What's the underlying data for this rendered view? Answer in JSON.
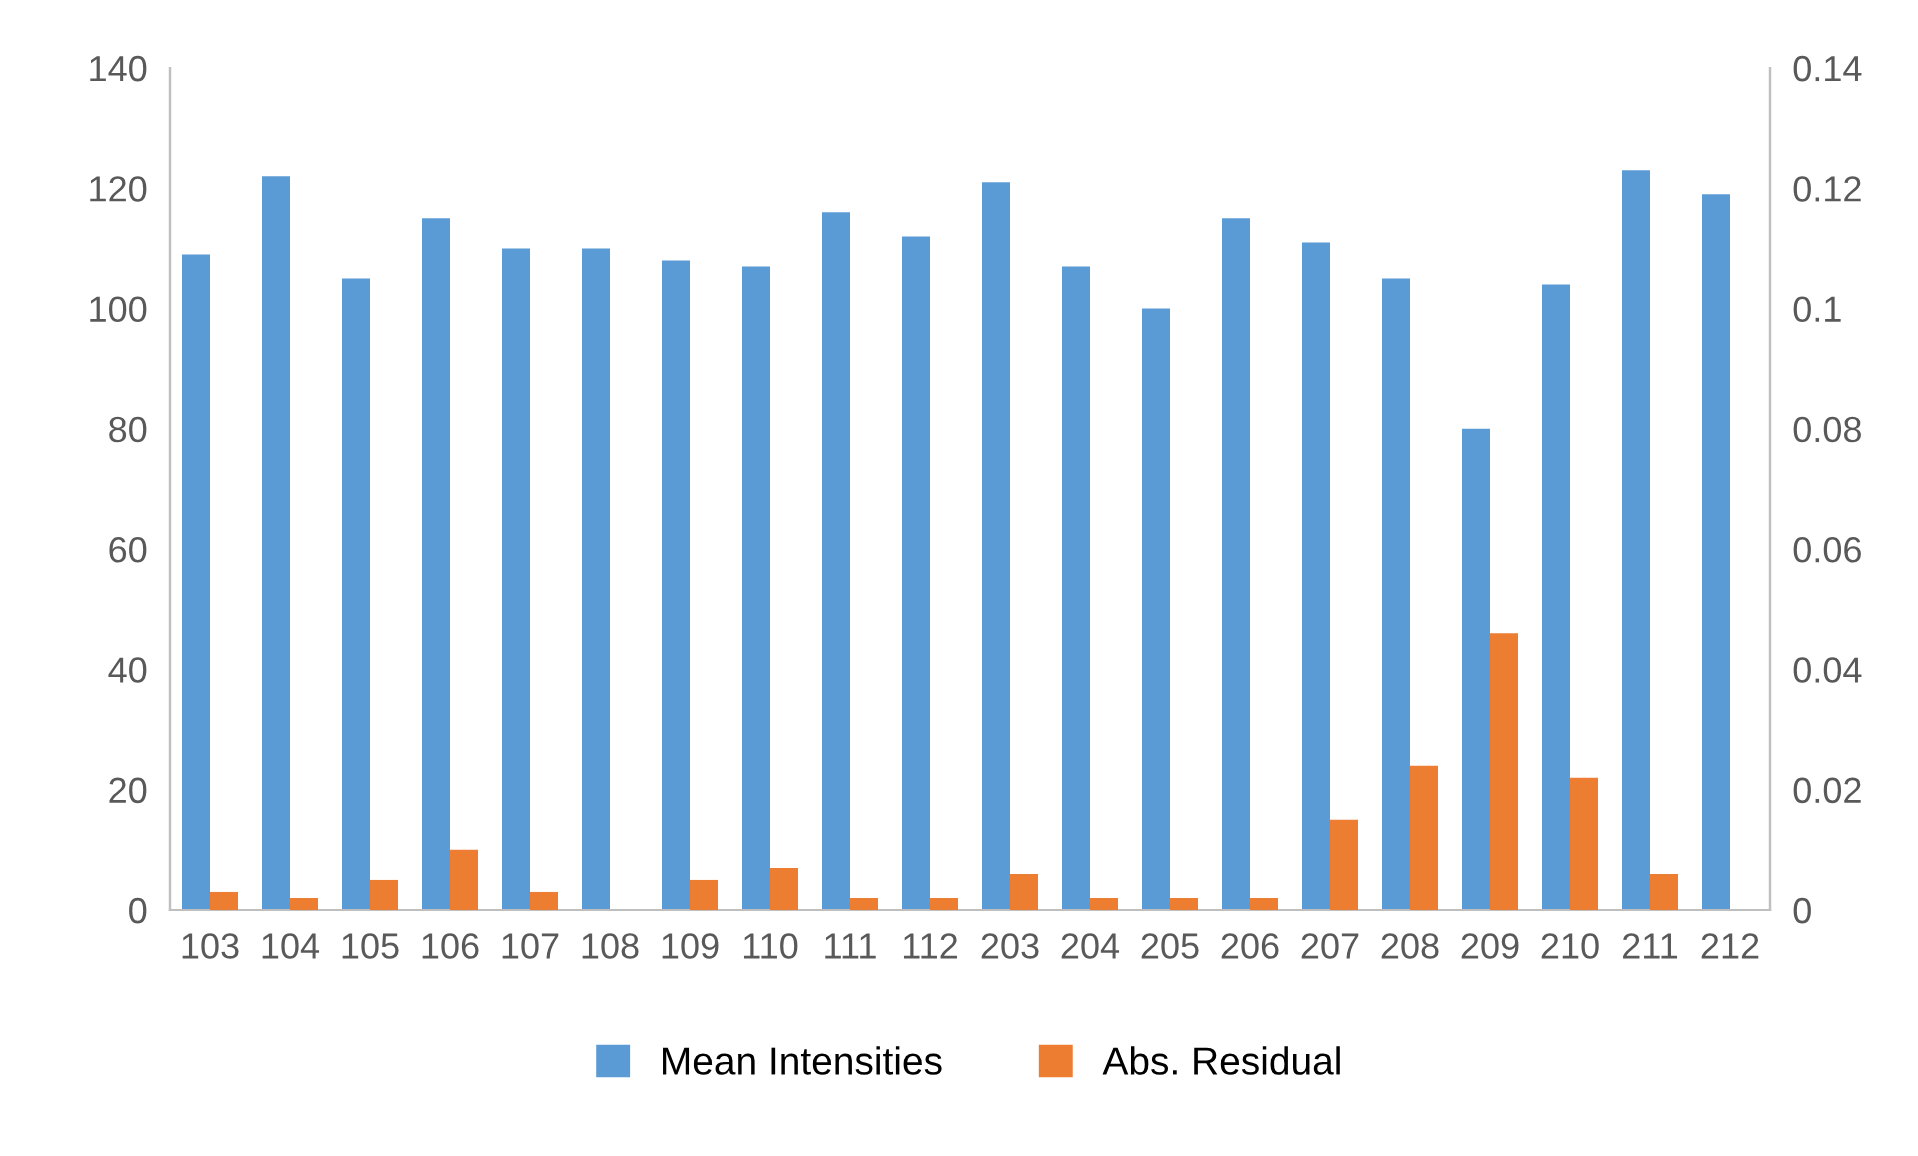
{
  "chart_data": {
    "type": "bar",
    "categories": [
      "103",
      "104",
      "105",
      "106",
      "107",
      "108",
      "109",
      "110",
      "111",
      "112",
      "203",
      "204",
      "205",
      "206",
      "207",
      "208",
      "209",
      "210",
      "211",
      "212"
    ],
    "series": [
      {
        "name": "Mean Intensities",
        "color": "#5b9bd5",
        "values": [
          109,
          122,
          105,
          115,
          110,
          110,
          108,
          107,
          116,
          112,
          121,
          107,
          100,
          115,
          111,
          105,
          80,
          104,
          123,
          119
        ]
      },
      {
        "name": "Abs. Residual",
        "color": "#ed7d31",
        "axis": "y2",
        "values": [
          0.003,
          0.002,
          0.005,
          0.01,
          0.003,
          0,
          0.005,
          0.007,
          0.002,
          0.002,
          0.006,
          0.002,
          0.002,
          0.002,
          0.015,
          0.024,
          0.046,
          0.022,
          0.006,
          0
        ]
      }
    ],
    "ylim": [
      0,
      140
    ],
    "yticks": [
      0,
      20,
      40,
      60,
      80,
      100,
      120,
      140
    ],
    "y2lim": [
      0,
      0.14
    ],
    "y2ticks": [
      0,
      0.02,
      0.04,
      0.06,
      0.08,
      0.1,
      0.12,
      0.14
    ],
    "grid": false,
    "legend": "bottom"
  }
}
